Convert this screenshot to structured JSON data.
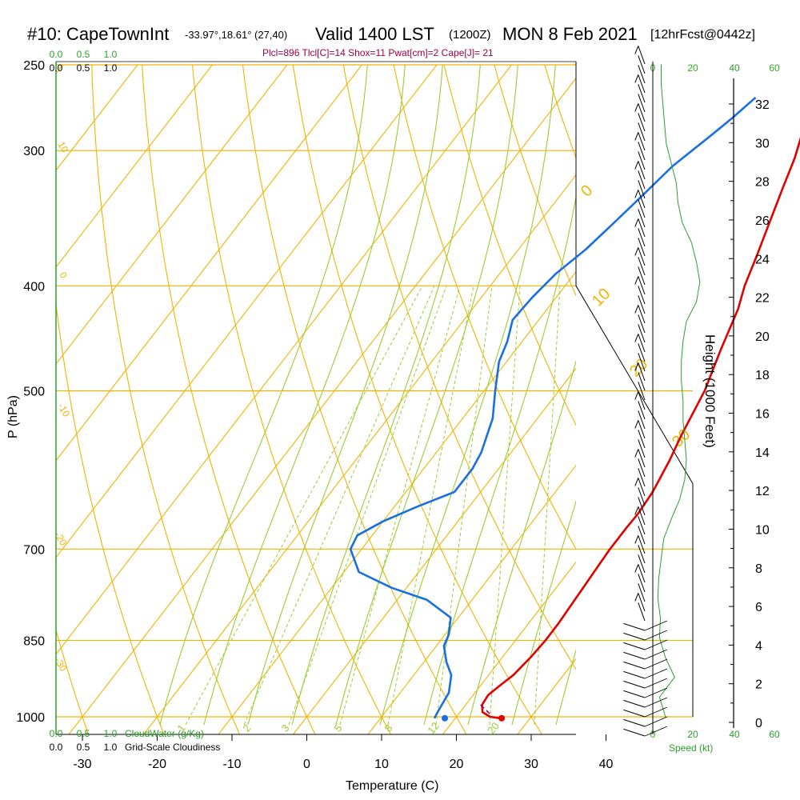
{
  "header": {
    "station": "#10: CapeTownInt",
    "coords": "-33.97°,18.61° (27,40)",
    "valid": "Valid 1400 LST",
    "zulu": "(1200Z)",
    "date": "MON 8 Feb 2021",
    "forecast": "[12hrFcst@0442z]",
    "params": "Plcl=896 Tlcl[C]=14 Shox=11 Pwat[cm]=2 Cape[J]= 21"
  },
  "left_scale": {
    "top_green": [
      "0.0",
      "0.5",
      "1.0"
    ],
    "top_black": [
      "0.0",
      "0.5",
      "1.0"
    ],
    "bottom_green": [
      "0.0",
      "0.5",
      "1.0"
    ],
    "bottom_black": [
      "0.0",
      "0.5",
      "1.0"
    ],
    "cloudwater_label": "CloudWater (g/Kg)",
    "cloudiness_label": "Grid-Scale Cloudiness"
  },
  "speed_scale": {
    "ticks": [
      "0",
      "20",
      "40",
      "60"
    ],
    "label": "Speed (kt)"
  },
  "colors": {
    "isotherm": "#f0b400",
    "mixing": "#9acd32",
    "temperature": "#e00000",
    "dewpoint": "#1a6fe0",
    "speed": "#2ca02c",
    "parcel": "#800080",
    "params_text": "#a0004a"
  },
  "chart_data": {
    "type": "line",
    "xlabel": "Temperature (C)",
    "ylabel": "P (hPa)",
    "y2label": "Height (1000 Feet)",
    "x_ticks": [
      "-30",
      "-20",
      "-10",
      "0",
      "10",
      "20",
      "30",
      "40"
    ],
    "p_ticks": [
      "250",
      "300",
      "400",
      "500",
      "700",
      "850",
      "1000"
    ],
    "h_ticks": [
      "0",
      "2",
      "4",
      "6",
      "8",
      "10",
      "12",
      "14",
      "16",
      "18",
      "20",
      "22",
      "24",
      "26",
      "28",
      "30",
      "32"
    ],
    "isotherm_labels": [
      "10",
      "0",
      "-10",
      "-20",
      "-30",
      "0",
      "10",
      "20",
      "30"
    ],
    "mixing_labels": [
      "1",
      "2",
      "3",
      "5",
      "8",
      "12",
      "20"
    ],
    "series": [
      {
        "name": "Temperature",
        "points": [
          [
            26.0,
            1003
          ],
          [
            24.5,
            1000
          ],
          [
            23.0,
            990
          ],
          [
            22.2,
            975
          ],
          [
            22.0,
            955
          ],
          [
            22.6,
            935
          ],
          [
            23.3,
            915
          ],
          [
            23.8,
            880
          ],
          [
            24.0,
            850
          ],
          [
            24.0,
            820
          ],
          [
            23.8,
            790
          ],
          [
            23.6,
            760
          ],
          [
            23.4,
            730
          ],
          [
            23.2,
            700
          ],
          [
            23.2,
            670
          ],
          [
            23.3,
            650
          ],
          [
            23.0,
            620
          ],
          [
            22.0,
            580
          ],
          [
            21.0,
            550
          ],
          [
            19.5,
            500
          ],
          [
            17.5,
            460
          ],
          [
            15.5,
            420
          ],
          [
            14.0,
            400
          ],
          [
            12.5,
            375
          ],
          [
            10.8,
            350
          ],
          [
            9.0,
            325
          ],
          [
            7.5,
            305
          ],
          [
            6.0,
            290
          ],
          [
            3.5,
            270
          ]
        ]
      },
      {
        "name": "Dewpoint",
        "points": [
          [
            17.2,
            1003
          ],
          [
            17.0,
            990
          ],
          [
            16.5,
            950
          ],
          [
            15.0,
            915
          ],
          [
            13.0,
            890
          ],
          [
            11.0,
            860
          ],
          [
            10.5,
            840
          ],
          [
            9.0,
            810
          ],
          [
            4.0,
            780
          ],
          [
            -2.0,
            760
          ],
          [
            -8.0,
            735
          ],
          [
            -11.5,
            700
          ],
          [
            -12.0,
            680
          ],
          [
            -10.0,
            660
          ],
          [
            -7.0,
            640
          ],
          [
            -3.5,
            620
          ],
          [
            -3.5,
            590
          ],
          [
            -4.0,
            570
          ],
          [
            -6.0,
            530
          ],
          [
            -8.5,
            500
          ],
          [
            -11.0,
            470
          ],
          [
            -12.0,
            450
          ],
          [
            -13.5,
            430
          ],
          [
            -13.2,
            410
          ],
          [
            -12.5,
            390
          ],
          [
            -11.0,
            370
          ],
          [
            -10.0,
            350
          ],
          [
            -9.5,
            340
          ],
          [
            -9.0,
            330
          ],
          [
            -8.0,
            310
          ],
          [
            -6.0,
            290
          ],
          [
            -5.0,
            280
          ],
          [
            -4.0,
            268
          ]
        ]
      }
    ],
    "parcel": [
      [
        22.0,
        975
      ],
      [
        23.2,
        985
      ],
      [
        24.5,
        997
      ]
    ],
    "surface": {
      "temperature": 26.2,
      "dewpoint": 18.6
    },
    "height_line": [
      [
        1.5,
        0.0
      ],
      [
        0.8,
        1.0
      ],
      [
        2.6,
        2.0
      ],
      [
        1.5,
        3.0
      ],
      [
        0.8,
        4.0
      ],
      [
        0.9,
        5.0
      ],
      [
        0.6,
        6.0
      ],
      [
        0.7,
        7.0
      ],
      [
        1.0,
        8.0
      ],
      [
        1.3,
        9.0
      ],
      [
        2.2,
        10.0
      ],
      [
        3.2,
        11.0
      ],
      [
        3.8,
        12.0
      ],
      [
        4.0,
        13.0
      ],
      [
        3.8,
        14.0
      ],
      [
        3.6,
        15.0
      ],
      [
        3.6,
        16.0
      ],
      [
        3.4,
        17.0
      ],
      [
        3.4,
        18.0
      ],
      [
        3.6,
        19.0
      ],
      [
        4.0,
        20.0
      ],
      [
        5.2,
        21.0
      ],
      [
        5.6,
        22.0
      ],
      [
        5.2,
        23.0
      ],
      [
        4.6,
        24.0
      ],
      [
        3.5,
        25.0
      ],
      [
        3.0,
        26.0
      ],
      [
        2.8,
        27.0
      ],
      [
        2.2,
        28.0
      ],
      [
        1.6,
        29.0
      ],
      [
        1.4,
        30.0
      ],
      [
        1.2,
        31.0
      ],
      [
        1.0,
        32.0
      ],
      [
        1.0,
        33.0
      ]
    ],
    "xlim": [
      -34,
      46
    ],
    "plim": [
      250,
      1050
    ],
    "grid": true
  }
}
